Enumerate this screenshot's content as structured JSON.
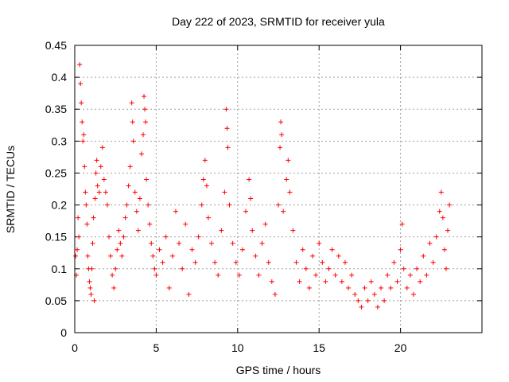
{
  "chart_data": {
    "type": "scatter",
    "title": "Day 222 of 2023, SRMTID for receiver yula",
    "xlabel": "GPS time / hours",
    "ylabel": "SRMTID / TECUs",
    "xlim": [
      0,
      25
    ],
    "ylim": [
      0,
      0.45
    ],
    "xticks": [
      0,
      5,
      10,
      15,
      20
    ],
    "yticks": [
      0,
      0.05,
      0.1,
      0.15,
      0.2,
      0.25,
      0.3,
      0.35,
      0.4,
      0.45
    ],
    "xtick_labels": [
      "0",
      "5",
      "10",
      "15",
      "20"
    ],
    "ytick_labels": [
      "0",
      "0.05",
      "0.1",
      "0.15",
      "0.2",
      "0.25",
      "0.3",
      "0.35",
      "0.4",
      "0.45"
    ],
    "grid": true,
    "marker": "+",
    "color": "#ff0000",
    "series": [
      {
        "name": "SRMTID",
        "points": [
          [
            0.05,
            0.12
          ],
          [
            0.1,
            0.09
          ],
          [
            0.15,
            0.13
          ],
          [
            0.2,
            0.18
          ],
          [
            0.25,
            0.15
          ],
          [
            0.3,
            0.42
          ],
          [
            0.35,
            0.39
          ],
          [
            0.4,
            0.36
          ],
          [
            0.45,
            0.33
          ],
          [
            0.5,
            0.3
          ],
          [
            0.55,
            0.31
          ],
          [
            0.6,
            0.26
          ],
          [
            0.65,
            0.22
          ],
          [
            0.7,
            0.2
          ],
          [
            0.75,
            0.17
          ],
          [
            0.8,
            0.12
          ],
          [
            0.85,
            0.1
          ],
          [
            0.9,
            0.08
          ],
          [
            0.95,
            0.07
          ],
          [
            1.0,
            0.06
          ],
          [
            1.05,
            0.1
          ],
          [
            1.1,
            0.14
          ],
          [
            1.15,
            0.18
          ],
          [
            1.2,
            0.05
          ],
          [
            1.25,
            0.21
          ],
          [
            1.3,
            0.25
          ],
          [
            1.35,
            0.27
          ],
          [
            1.4,
            0.23
          ],
          [
            1.5,
            0.22
          ],
          [
            1.6,
            0.26
          ],
          [
            1.7,
            0.29
          ],
          [
            1.8,
            0.24
          ],
          [
            1.9,
            0.22
          ],
          [
            2.0,
            0.2
          ],
          [
            2.1,
            0.15
          ],
          [
            2.2,
            0.12
          ],
          [
            2.3,
            0.09
          ],
          [
            2.4,
            0.07
          ],
          [
            2.5,
            0.1
          ],
          [
            2.6,
            0.13
          ],
          [
            2.7,
            0.16
          ],
          [
            2.8,
            0.14
          ],
          [
            2.9,
            0.12
          ],
          [
            3.0,
            0.15
          ],
          [
            3.1,
            0.18
          ],
          [
            3.2,
            0.2
          ],
          [
            3.3,
            0.23
          ],
          [
            3.4,
            0.26
          ],
          [
            3.5,
            0.36
          ],
          [
            3.55,
            0.33
          ],
          [
            3.6,
            0.3
          ],
          [
            3.7,
            0.22
          ],
          [
            3.8,
            0.19
          ],
          [
            3.9,
            0.16
          ],
          [
            4.0,
            0.21
          ],
          [
            4.1,
            0.28
          ],
          [
            4.2,
            0.31
          ],
          [
            4.25,
            0.37
          ],
          [
            4.3,
            0.35
          ],
          [
            4.35,
            0.33
          ],
          [
            4.4,
            0.24
          ],
          [
            4.5,
            0.2
          ],
          [
            4.6,
            0.17
          ],
          [
            4.7,
            0.14
          ],
          [
            4.8,
            0.12
          ],
          [
            4.9,
            0.1
          ],
          [
            5.0,
            0.09
          ],
          [
            5.2,
            0.13
          ],
          [
            5.4,
            0.11
          ],
          [
            5.6,
            0.15
          ],
          [
            5.8,
            0.07
          ],
          [
            6.0,
            0.12
          ],
          [
            6.2,
            0.19
          ],
          [
            6.4,
            0.14
          ],
          [
            6.6,
            0.1
          ],
          [
            6.8,
            0.17
          ],
          [
            7.0,
            0.06
          ],
          [
            7.2,
            0.13
          ],
          [
            7.4,
            0.11
          ],
          [
            7.6,
            0.15
          ],
          [
            7.8,
            0.2
          ],
          [
            7.9,
            0.24
          ],
          [
            8.0,
            0.27
          ],
          [
            8.1,
            0.23
          ],
          [
            8.2,
            0.18
          ],
          [
            8.4,
            0.14
          ],
          [
            8.6,
            0.11
          ],
          [
            8.8,
            0.09
          ],
          [
            9.0,
            0.16
          ],
          [
            9.2,
            0.22
          ],
          [
            9.3,
            0.35
          ],
          [
            9.35,
            0.32
          ],
          [
            9.4,
            0.29
          ],
          [
            9.5,
            0.2
          ],
          [
            9.7,
            0.14
          ],
          [
            9.9,
            0.11
          ],
          [
            10.1,
            0.09
          ],
          [
            10.3,
            0.13
          ],
          [
            10.5,
            0.19
          ],
          [
            10.7,
            0.24
          ],
          [
            10.8,
            0.21
          ],
          [
            10.9,
            0.16
          ],
          [
            11.1,
            0.12
          ],
          [
            11.3,
            0.09
          ],
          [
            11.5,
            0.14
          ],
          [
            11.7,
            0.17
          ],
          [
            11.9,
            0.11
          ],
          [
            12.1,
            0.08
          ],
          [
            12.3,
            0.06
          ],
          [
            12.5,
            0.2
          ],
          [
            12.6,
            0.29
          ],
          [
            12.65,
            0.33
          ],
          [
            12.7,
            0.31
          ],
          [
            12.8,
            0.19
          ],
          [
            13.0,
            0.24
          ],
          [
            13.1,
            0.27
          ],
          [
            13.2,
            0.22
          ],
          [
            13.4,
            0.16
          ],
          [
            13.6,
            0.11
          ],
          [
            13.8,
            0.08
          ],
          [
            14.0,
            0.13
          ],
          [
            14.2,
            0.1
          ],
          [
            14.4,
            0.07
          ],
          [
            14.6,
            0.12
          ],
          [
            14.8,
            0.09
          ],
          [
            15.0,
            0.14
          ],
          [
            15.2,
            0.11
          ],
          [
            15.4,
            0.08
          ],
          [
            15.6,
            0.1
          ],
          [
            15.8,
            0.13
          ],
          [
            16.0,
            0.09
          ],
          [
            16.2,
            0.12
          ],
          [
            16.4,
            0.08
          ],
          [
            16.6,
            0.11
          ],
          [
            16.8,
            0.07
          ],
          [
            17.0,
            0.09
          ],
          [
            17.2,
            0.06
          ],
          [
            17.4,
            0.05
          ],
          [
            17.6,
            0.04
          ],
          [
            17.8,
            0.07
          ],
          [
            18.0,
            0.05
          ],
          [
            18.2,
            0.08
          ],
          [
            18.4,
            0.06
          ],
          [
            18.6,
            0.04
          ],
          [
            18.8,
            0.07
          ],
          [
            19.0,
            0.05
          ],
          [
            19.2,
            0.09
          ],
          [
            19.4,
            0.07
          ],
          [
            19.6,
            0.11
          ],
          [
            19.8,
            0.08
          ],
          [
            20.0,
            0.13
          ],
          [
            20.1,
            0.17
          ],
          [
            20.2,
            0.1
          ],
          [
            20.4,
            0.07
          ],
          [
            20.6,
            0.09
          ],
          [
            20.8,
            0.06
          ],
          [
            21.0,
            0.1
          ],
          [
            21.2,
            0.08
          ],
          [
            21.4,
            0.12
          ],
          [
            21.6,
            0.09
          ],
          [
            21.8,
            0.14
          ],
          [
            22.0,
            0.11
          ],
          [
            22.2,
            0.15
          ],
          [
            22.4,
            0.19
          ],
          [
            22.5,
            0.22
          ],
          [
            22.6,
            0.18
          ],
          [
            22.7,
            0.13
          ],
          [
            22.8,
            0.1
          ],
          [
            22.9,
            0.16
          ],
          [
            23.0,
            0.2
          ]
        ]
      }
    ]
  }
}
